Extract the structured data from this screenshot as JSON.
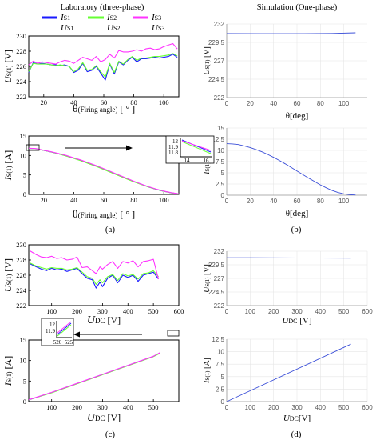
{
  "headings": {
    "lab": "Laboratory (three-phase)",
    "sim": "Simulation (One-phase)"
  },
  "legend": [
    {
      "label": "IS1",
      "main": "I",
      "sub": "S1",
      "color": "#1a1aff"
    },
    {
      "label": "IS2",
      "main": "I",
      "sub": "S2",
      "color": "#66ff33"
    },
    {
      "label": "IS3",
      "main": "I",
      "sub": "S3",
      "color": "#ff33ff"
    },
    {
      "label": "US1",
      "main": "U",
      "sub": "S1"
    },
    {
      "label": "US2",
      "main": "U",
      "sub": "S2"
    },
    {
      "label": "US3",
      "main": "U",
      "sub": "S3"
    }
  ],
  "colors": {
    "phase1": "#1a1aff",
    "phase2": "#66ff33",
    "phase3": "#ff33ff",
    "sim": "#3b4fd8",
    "lab_single": "#7b55c7"
  },
  "chart_data": [
    {
      "id": "a_top",
      "type": "line",
      "ylabel": {
        "main": "U",
        "sub": "S(1)",
        "unit": " [V]"
      },
      "xlabel": {
        "main": "θ",
        "sub": "(Firing angle)",
        "unit": " [ ° ]"
      },
      "xlim": [
        10,
        110
      ],
      "ylim": [
        222,
        230
      ],
      "xticks": [
        20,
        40,
        60,
        80,
        100
      ],
      "yticks": [
        222,
        224,
        226,
        228,
        230
      ],
      "series": [
        {
          "phase": "S1",
          "x": [
            10,
            13,
            16,
            19,
            22,
            25,
            28,
            31,
            34,
            37,
            40,
            43,
            46,
            49,
            52,
            55,
            58,
            61,
            64,
            67,
            70,
            73,
            76,
            79,
            82,
            85,
            88,
            91,
            94,
            97,
            100,
            103,
            106,
            109
          ],
          "y": [
            225.2,
            226.5,
            226.3,
            226.4,
            226.3,
            226.2,
            226.2,
            226.1,
            226.2,
            226,
            225.2,
            225.5,
            226.4,
            225.3,
            225.5,
            226,
            225.1,
            224.2,
            226.3,
            225,
            226.6,
            226.2,
            226.8,
            227.2,
            226.6,
            227,
            227,
            227.1,
            227.2,
            227.1,
            227.2,
            227.3,
            227.6,
            227.2
          ]
        },
        {
          "phase": "S2",
          "x": [
            10,
            13,
            16,
            19,
            22,
            25,
            28,
            31,
            34,
            37,
            40,
            43,
            46,
            49,
            52,
            55,
            58,
            61,
            64,
            67,
            70,
            73,
            76,
            79,
            82,
            85,
            88,
            91,
            94,
            97,
            100,
            103,
            106,
            109
          ],
          "y": [
            225.3,
            226.4,
            226.3,
            226.3,
            226.3,
            226.2,
            226.1,
            226.2,
            226.1,
            226,
            225.3,
            225.7,
            226.5,
            225.5,
            225.6,
            226.1,
            225.3,
            224.6,
            226.4,
            225.2,
            226.7,
            226.3,
            226.9,
            227.3,
            226.8,
            227.1,
            227.1,
            227.2,
            227.3,
            227.3,
            227.4,
            227.5,
            227.7,
            227.4
          ]
        },
        {
          "phase": "S3",
          "x": [
            10,
            13,
            16,
            19,
            22,
            25,
            28,
            31,
            34,
            37,
            40,
            43,
            46,
            49,
            52,
            55,
            58,
            61,
            64,
            67,
            70,
            73,
            76,
            79,
            82,
            85,
            88,
            91,
            94,
            97,
            100,
            103,
            106,
            109
          ],
          "y": [
            226.2,
            226.7,
            226.4,
            226.6,
            226.5,
            226.4,
            226.3,
            226.6,
            226.8,
            226.7,
            226.4,
            226.8,
            227.2,
            227,
            226.8,
            227.3,
            226.6,
            226.9,
            227.6,
            227.1,
            228.1,
            227.9,
            227.9,
            228,
            228.2,
            228,
            228.3,
            228.4,
            228.2,
            228.3,
            228.6,
            228.8,
            229,
            228.3
          ]
        }
      ]
    },
    {
      "id": "a_bottom",
      "type": "line",
      "ylabel": {
        "main": "I",
        "sub": "S(1)",
        "unit": " [A]"
      },
      "xlabel": {
        "main": "θ",
        "sub": "(Firing angle)",
        "unit": " [ ° ]"
      },
      "xlim": [
        10,
        110
      ],
      "ylim": [
        0,
        15
      ],
      "xticks": [
        20,
        40,
        60,
        80,
        100
      ],
      "yticks": [
        0,
        5,
        10,
        15
      ],
      "inset": {
        "xticks": [
          "14",
          "16"
        ],
        "yticks": [
          "12",
          "11.9",
          "11.8"
        ]
      },
      "series": [
        {
          "phase": "S1",
          "x": [
            10,
            15,
            20,
            25,
            30,
            35,
            40,
            45,
            50,
            55,
            60,
            65,
            70,
            75,
            80,
            85,
            90,
            95,
            100,
            105,
            110
          ],
          "y": [
            11.8,
            11.7,
            11.3,
            10.9,
            10.4,
            9.9,
            9.3,
            8.7,
            8.0,
            7.3,
            6.5,
            5.7,
            4.9,
            4.1,
            3.3,
            2.6,
            1.9,
            1.3,
            0.8,
            0.4,
            0.15
          ]
        },
        {
          "phase": "S2",
          "x": [
            10,
            15,
            20,
            25,
            30,
            35,
            40,
            45,
            50,
            55,
            60,
            65,
            70,
            75,
            80,
            85,
            90,
            95,
            100,
            105,
            110
          ],
          "y": [
            11.8,
            11.7,
            11.3,
            10.9,
            10.4,
            9.85,
            9.25,
            8.6,
            7.9,
            7.2,
            6.4,
            5.6,
            4.8,
            4.0,
            3.25,
            2.55,
            1.9,
            1.3,
            0.8,
            0.4,
            0.15
          ]
        },
        {
          "phase": "S3",
          "x": [
            10,
            15,
            20,
            25,
            30,
            35,
            40,
            45,
            50,
            55,
            60,
            65,
            70,
            75,
            80,
            85,
            90,
            95,
            100,
            105,
            110
          ],
          "y": [
            11.85,
            11.75,
            11.35,
            10.95,
            10.5,
            10.0,
            9.4,
            8.8,
            8.1,
            7.4,
            6.6,
            5.8,
            5.0,
            4.2,
            3.4,
            2.65,
            1.95,
            1.35,
            0.85,
            0.45,
            0.15
          ]
        }
      ]
    },
    {
      "id": "b_top",
      "type": "line",
      "ylabel": {
        "main": "U",
        "sub": "S(1)",
        "unit": " [V]"
      },
      "xlabel": {
        "main": "θ[deg]",
        "sub": "",
        "unit": ""
      },
      "xlim": [
        0,
        120
      ],
      "ylim": [
        222,
        232
      ],
      "xticks": [
        0,
        20,
        40,
        60,
        80,
        100
      ],
      "yticks": [
        222,
        224.5,
        227,
        229.5,
        232
      ],
      "series": [
        {
          "phase": "sim",
          "x": [
            0,
            30,
            60,
            90,
            110
          ],
          "y": [
            230.7,
            230.68,
            230.68,
            230.72,
            230.8
          ]
        }
      ]
    },
    {
      "id": "b_bottom",
      "type": "line",
      "ylabel": {
        "main": "I",
        "sub": "S(1)",
        "unit": " [A]"
      },
      "xlabel": {
        "main": "θ[deg]",
        "sub": "",
        "unit": ""
      },
      "xlim": [
        0,
        120
      ],
      "ylim": [
        0,
        15
      ],
      "xticks": [
        0,
        20,
        40,
        60,
        80,
        100
      ],
      "yticks": [
        0,
        2.5,
        5,
        7.5,
        10,
        12.5,
        15
      ],
      "series": [
        {
          "phase": "sim",
          "x": [
            0,
            5,
            10,
            15,
            20,
            25,
            30,
            35,
            40,
            45,
            50,
            55,
            60,
            65,
            70,
            75,
            80,
            85,
            90,
            95,
            100,
            105,
            110
          ],
          "y": [
            11.5,
            11.45,
            11.3,
            11.0,
            10.65,
            10.2,
            9.7,
            9.1,
            8.45,
            7.75,
            7.0,
            6.2,
            5.4,
            4.6,
            3.8,
            3.05,
            2.3,
            1.65,
            1.05,
            0.6,
            0.3,
            0.12,
            0.05
          ]
        }
      ]
    },
    {
      "id": "c_top",
      "type": "line",
      "ylabel": {
        "main": "U",
        "sub": "S(1)",
        "unit": " [V]"
      },
      "xlabel": {
        "main": "U",
        "sub": "DC",
        "unit": " [V]"
      },
      "xlim": [
        10,
        600
      ],
      "ylim": [
        222,
        230
      ],
      "xticks": [
        100,
        200,
        300,
        400,
        500,
        600
      ],
      "yticks": [
        222,
        224,
        226,
        228,
        230
      ],
      "series": [
        {
          "phase": "S1",
          "x": [
            15,
            40,
            60,
            80,
            100,
            120,
            140,
            160,
            180,
            200,
            220,
            240,
            260,
            275,
            290,
            300,
            320,
            340,
            360,
            380,
            400,
            420,
            440,
            460,
            480,
            500,
            520
          ],
          "y": [
            227.5,
            227.1,
            226.8,
            226.6,
            226.9,
            226.7,
            226.8,
            226.5,
            226.7,
            226.9,
            226.2,
            225.6,
            225.4,
            224.3,
            225.1,
            224.5,
            225.6,
            226,
            225,
            226,
            225.7,
            226,
            225.2,
            226,
            226.2,
            226.4,
            225.5
          ]
        },
        {
          "phase": "S2",
          "x": [
            15,
            40,
            60,
            80,
            100,
            120,
            140,
            160,
            180,
            200,
            220,
            240,
            260,
            275,
            290,
            300,
            320,
            340,
            360,
            380,
            400,
            420,
            440,
            460,
            480,
            500,
            520
          ],
          "y": [
            227.6,
            227.2,
            227,
            226.8,
            227,
            226.9,
            226.9,
            226.7,
            226.8,
            227,
            226.4,
            225.8,
            225.6,
            224.8,
            225.4,
            225,
            225.8,
            226.1,
            225.3,
            226.2,
            225.9,
            226.1,
            225.5,
            226.2,
            226.3,
            226.6,
            225.8
          ]
        },
        {
          "phase": "S3",
          "x": [
            15,
            40,
            60,
            80,
            100,
            120,
            140,
            160,
            180,
            200,
            220,
            240,
            260,
            275,
            290,
            300,
            320,
            340,
            360,
            380,
            400,
            420,
            440,
            460,
            480,
            500,
            520
          ],
          "y": [
            229.2,
            228.7,
            228.4,
            228.3,
            228.5,
            228.2,
            228.3,
            228,
            228.1,
            228.4,
            227,
            227.1,
            226.6,
            226.2,
            227.1,
            226.8,
            227.4,
            227.8,
            226.9,
            227.8,
            227.6,
            227.9,
            227.1,
            227.8,
            227.9,
            228.1,
            225.5
          ]
        }
      ]
    },
    {
      "id": "c_bottom",
      "type": "line",
      "ylabel": {
        "main": "I",
        "sub": "S(1)",
        "unit": " [A]"
      },
      "xlabel": {
        "main": "U",
        "sub": "DC",
        "unit": " [V]"
      },
      "xlim": [
        10,
        600
      ],
      "ylim": [
        0,
        15
      ],
      "xticks": [
        100,
        200,
        300,
        400,
        500
      ],
      "yticks": [
        0,
        5,
        10,
        15
      ],
      "inset": {
        "xticks": [
          "520",
          "525"
        ],
        "yticks": [
          "12",
          "11.9"
        ]
      },
      "series": [
        {
          "phase": "S1",
          "x": [
            10,
            100,
            200,
            300,
            400,
            500,
            525
          ],
          "y": [
            0.4,
            2.2,
            4.4,
            6.6,
            8.8,
            11.0,
            11.8
          ]
        },
        {
          "phase": "S2",
          "x": [
            10,
            100,
            200,
            300,
            400,
            500,
            525
          ],
          "y": [
            0.4,
            2.15,
            4.35,
            6.55,
            8.75,
            10.95,
            11.75
          ]
        },
        {
          "phase": "S3",
          "x": [
            10,
            100,
            200,
            300,
            400,
            500,
            525
          ],
          "y": [
            0.45,
            2.25,
            4.45,
            6.65,
            8.85,
            11.05,
            11.9
          ]
        }
      ]
    },
    {
      "id": "d_top",
      "type": "line",
      "ylabel": {
        "main": "U",
        "sub": "S(1)",
        "unit": " [V]"
      },
      "xlabel": {
        "main": "U",
        "sub": "DC",
        "unit": " [V]"
      },
      "xlim": [
        0,
        600
      ],
      "ylim": [
        222,
        232
      ],
      "xticks": [
        0,
        100,
        200,
        300,
        400,
        500,
        600
      ],
      "yticks": [
        222,
        224.5,
        227,
        229.5,
        232
      ],
      "series": [
        {
          "phase": "sim",
          "x": [
            0,
            100,
            200,
            300,
            400,
            530
          ],
          "y": [
            230.8,
            230.79,
            230.78,
            230.76,
            230.74,
            230.72
          ]
        }
      ]
    },
    {
      "id": "d_bottom",
      "type": "line",
      "ylabel": {
        "main": "I",
        "sub": "S(1)",
        "unit": " [A]"
      },
      "xlabel": {
        "main": "U",
        "sub": "DC",
        "unit": "[V]"
      },
      "xlim": [
        0,
        600
      ],
      "ylim": [
        0,
        12.5
      ],
      "xticks": [
        0,
        100,
        200,
        300,
        400,
        500,
        600
      ],
      "yticks": [
        0,
        2.5,
        5,
        7.5,
        10,
        12.5
      ],
      "series": [
        {
          "phase": "sim",
          "x": [
            0,
            530
          ],
          "y": [
            0,
            11.5
          ]
        }
      ]
    }
  ],
  "panel_labels": [
    "(a)",
    "(b)",
    "(c)",
    "(d)"
  ]
}
